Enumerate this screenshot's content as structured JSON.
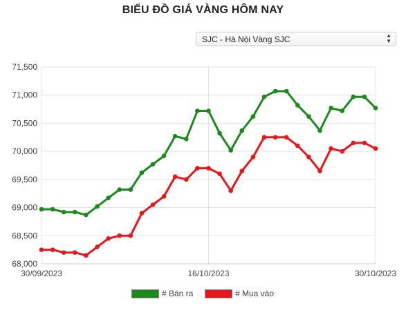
{
  "page": {
    "title": "BIỂU ĐỒ GIÁ VÀNG HÔM NAY"
  },
  "selector": {
    "value": "SJC - Hà Nội Vàng SJC",
    "arrow_icon": "updown-chevron-icon"
  },
  "chart_data": {
    "type": "line",
    "title": "",
    "xlabel": "",
    "ylabel": "",
    "ylim": [
      68000,
      71500
    ],
    "y_ticks": [
      "68,000",
      "68,500",
      "69,000",
      "69,500",
      "70,000",
      "70,500",
      "71,000",
      "71,500"
    ],
    "x_tick_labels": [
      "30/09/2023",
      "16/10/2023",
      "30/10/2023"
    ],
    "grid": true,
    "legend_position": "bottom",
    "series": [
      {
        "name": "# Bán ra",
        "color": "#1a8a1a",
        "values": [
          68970,
          68970,
          68920,
          68920,
          68870,
          69020,
          69170,
          69320,
          69320,
          69620,
          69770,
          69920,
          70270,
          70220,
          70720,
          70720,
          70320,
          70020,
          70370,
          70620,
          70970,
          71070,
          71070,
          70820,
          70620,
          70370,
          70770,
          70720,
          70970,
          70970,
          70770
        ]
      },
      {
        "name": "# Mua vào",
        "color": "#e8151b",
        "values": [
          68250,
          68250,
          68200,
          68200,
          68150,
          68300,
          68450,
          68500,
          68500,
          68900,
          69050,
          69200,
          69550,
          69500,
          69700,
          69700,
          69600,
          69300,
          69650,
          69900,
          70250,
          70250,
          70250,
          70100,
          69900,
          69650,
          70050,
          70000,
          70150,
          70150,
          70050
        ]
      }
    ]
  }
}
